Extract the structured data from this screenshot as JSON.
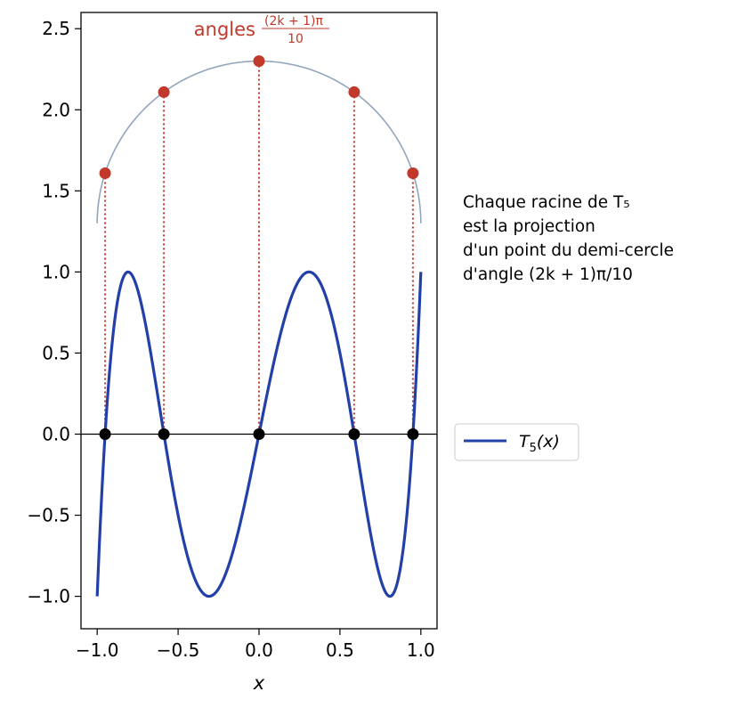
{
  "chart_data": {
    "type": "line",
    "xlabel": "x",
    "xlim": [
      -1.1,
      1.1
    ],
    "ylim": [
      -1.2,
      2.6
    ],
    "xticks": [
      -1.0,
      -0.5,
      0.0,
      0.5,
      1.0
    ],
    "xtick_labels": [
      "−1.0",
      "−0.5",
      "0.0",
      "0.5",
      "1.0"
    ],
    "yticks": [
      -1.0,
      -0.5,
      0.0,
      0.5,
      1.0,
      1.5,
      2.0,
      2.5
    ],
    "ytick_labels": [
      "−1.0",
      "−0.5",
      "0.0",
      "0.5",
      "1.0",
      "1.5",
      "2.0",
      "2.5"
    ],
    "grid": false,
    "legend_placement": "right, outside plot",
    "series": [
      {
        "name": "T5(x)",
        "legend_label": {
          "main": "T",
          "sub": "5",
          "rest": "(x)"
        },
        "function": "16x^5 - 20x^3 + 5x",
        "x_range": [
          -1.0,
          1.0
        ],
        "color": "#2340a8"
      }
    ],
    "roots": {
      "x": [
        -0.951,
        -0.588,
        0.0,
        0.588,
        0.951
      ],
      "y": [
        0,
        0,
        0,
        0,
        0
      ],
      "color": "#000000"
    },
    "semicircle": {
      "center": [
        0.0,
        1.3
      ],
      "radius": 1.0,
      "color": "#93a5bd"
    },
    "circle_points": {
      "x": [
        -0.951,
        -0.588,
        0.0,
        0.588,
        0.951
      ],
      "y": [
        1.609,
        2.109,
        2.3,
        2.109,
        1.609
      ],
      "color": "#c0392b"
    },
    "annotation": {
      "text": "angles",
      "fraction_numerator": "(2k + 1)π",
      "fraction_denominator": "10",
      "color": "#c0392b"
    },
    "side_note": {
      "lines": [
        "Chaque racine de T₅",
        "est la projection",
        "d'un point du demi-cercle",
        "d'angle (2k + 1)π/10"
      ]
    }
  }
}
